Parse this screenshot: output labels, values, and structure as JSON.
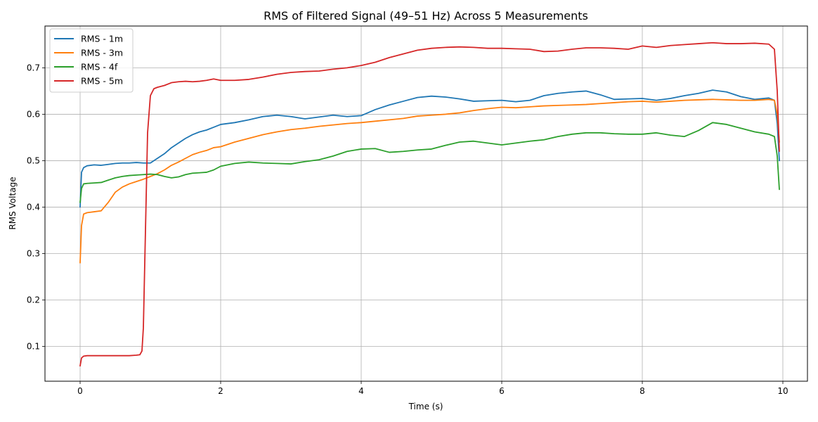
{
  "chart_data": {
    "type": "line",
    "title": "RMS of Filtered Signal (49–51 Hz) Across 5 Measurements",
    "xlabel": "Time (s)",
    "ylabel": "RMS Voltage",
    "xlim": [
      -0.5,
      10.35
    ],
    "ylim": [
      0.025,
      0.79
    ],
    "xticks": [
      0,
      2,
      4,
      6,
      8,
      10
    ],
    "yticks": [
      0.1,
      0.2,
      0.3,
      0.4,
      0.5,
      0.6,
      0.7
    ],
    "xtick_labels": [
      "0",
      "2",
      "4",
      "6",
      "8",
      "10"
    ],
    "ytick_labels": [
      "0.1",
      "0.2",
      "0.3",
      "0.4",
      "0.5",
      "0.6",
      "0.7"
    ],
    "grid": true,
    "legend_position": "top-left",
    "series": [
      {
        "name": "RMS - 1m",
        "color": "#1f77b4",
        "x": [
          0,
          0.02,
          0.05,
          0.1,
          0.2,
          0.3,
          0.4,
          0.5,
          0.6,
          0.7,
          0.8,
          0.9,
          1.0,
          1.1,
          1.2,
          1.3,
          1.4,
          1.5,
          1.6,
          1.7,
          1.8,
          1.9,
          2.0,
          2.2,
          2.4,
          2.6,
          2.8,
          3.0,
          3.2,
          3.4,
          3.6,
          3.8,
          4.0,
          4.2,
          4.4,
          4.6,
          4.8,
          5.0,
          5.2,
          5.4,
          5.6,
          5.8,
          6.0,
          6.2,
          6.4,
          6.6,
          6.8,
          7.0,
          7.2,
          7.4,
          7.6,
          7.8,
          8.0,
          8.2,
          8.4,
          8.6,
          8.8,
          9.0,
          9.2,
          9.4,
          9.6,
          9.8,
          9.88,
          9.92,
          9.95
        ],
        "values": [
          0.4,
          0.475,
          0.485,
          0.489,
          0.491,
          0.49,
          0.492,
          0.494,
          0.495,
          0.495,
          0.496,
          0.495,
          0.495,
          0.505,
          0.515,
          0.528,
          0.538,
          0.548,
          0.556,
          0.562,
          0.566,
          0.572,
          0.578,
          0.582,
          0.588,
          0.595,
          0.598,
          0.595,
          0.59,
          0.594,
          0.598,
          0.595,
          0.597,
          0.61,
          0.62,
          0.628,
          0.636,
          0.639,
          0.637,
          0.633,
          0.628,
          0.629,
          0.63,
          0.627,
          0.63,
          0.64,
          0.645,
          0.648,
          0.65,
          0.642,
          0.632,
          0.633,
          0.634,
          0.63,
          0.634,
          0.64,
          0.645,
          0.652,
          0.648,
          0.638,
          0.632,
          0.635,
          0.63,
          0.58,
          0.5
        ]
      },
      {
        "name": "RMS - 3m",
        "color": "#ff7f0e",
        "x": [
          0,
          0.02,
          0.05,
          0.1,
          0.2,
          0.3,
          0.4,
          0.5,
          0.6,
          0.7,
          0.8,
          0.9,
          1.0,
          1.1,
          1.2,
          1.3,
          1.4,
          1.5,
          1.6,
          1.7,
          1.8,
          1.9,
          2.0,
          2.2,
          2.4,
          2.6,
          2.8,
          3.0,
          3.2,
          3.4,
          3.6,
          3.8,
          4.0,
          4.2,
          4.4,
          4.6,
          4.8,
          5.0,
          5.2,
          5.4,
          5.6,
          5.8,
          6.0,
          6.2,
          6.4,
          6.6,
          6.8,
          7.0,
          7.2,
          7.4,
          7.6,
          7.8,
          8.0,
          8.2,
          8.4,
          8.6,
          8.8,
          9.0,
          9.2,
          9.4,
          9.6,
          9.8,
          9.88,
          9.92,
          9.95
        ],
        "values": [
          0.28,
          0.36,
          0.385,
          0.388,
          0.39,
          0.392,
          0.41,
          0.432,
          0.443,
          0.45,
          0.455,
          0.46,
          0.466,
          0.472,
          0.48,
          0.49,
          0.497,
          0.505,
          0.513,
          0.518,
          0.522,
          0.528,
          0.53,
          0.54,
          0.548,
          0.556,
          0.562,
          0.567,
          0.57,
          0.574,
          0.577,
          0.58,
          0.582,
          0.585,
          0.588,
          0.591,
          0.596,
          0.598,
          0.6,
          0.603,
          0.608,
          0.612,
          0.615,
          0.614,
          0.616,
          0.618,
          0.619,
          0.62,
          0.621,
          0.623,
          0.625,
          0.627,
          0.628,
          0.626,
          0.628,
          0.63,
          0.631,
          0.632,
          0.631,
          0.63,
          0.63,
          0.632,
          0.63,
          0.6,
          0.54
        ]
      },
      {
        "name": "RMS - 4f",
        "color": "#2ca02c",
        "x": [
          0,
          0.02,
          0.05,
          0.1,
          0.2,
          0.3,
          0.4,
          0.5,
          0.6,
          0.7,
          0.8,
          0.9,
          1.0,
          1.1,
          1.2,
          1.3,
          1.4,
          1.5,
          1.6,
          1.7,
          1.8,
          1.9,
          2.0,
          2.2,
          2.4,
          2.6,
          2.8,
          3.0,
          3.2,
          3.4,
          3.6,
          3.8,
          4.0,
          4.2,
          4.4,
          4.6,
          4.8,
          5.0,
          5.2,
          5.4,
          5.6,
          5.8,
          6.0,
          6.2,
          6.4,
          6.6,
          6.8,
          7.0,
          7.2,
          7.4,
          7.6,
          7.8,
          8.0,
          8.2,
          8.4,
          8.6,
          8.8,
          9.0,
          9.2,
          9.4,
          9.6,
          9.8,
          9.88,
          9.92,
          9.95
        ],
        "values": [
          0.41,
          0.44,
          0.45,
          0.451,
          0.452,
          0.453,
          0.458,
          0.463,
          0.466,
          0.468,
          0.469,
          0.47,
          0.471,
          0.47,
          0.466,
          0.463,
          0.465,
          0.47,
          0.473,
          0.474,
          0.475,
          0.48,
          0.488,
          0.494,
          0.497,
          0.495,
          0.494,
          0.493,
          0.498,
          0.502,
          0.51,
          0.52,
          0.525,
          0.526,
          0.518,
          0.52,
          0.523,
          0.525,
          0.533,
          0.54,
          0.542,
          0.538,
          0.534,
          0.538,
          0.542,
          0.545,
          0.552,
          0.557,
          0.56,
          0.56,
          0.558,
          0.557,
          0.557,
          0.56,
          0.555,
          0.552,
          0.565,
          0.582,
          0.578,
          0.57,
          0.562,
          0.557,
          0.552,
          0.51,
          0.438
        ]
      },
      {
        "name": "RMS - 5m",
        "color": "#d62728",
        "x": [
          0,
          0.02,
          0.05,
          0.1,
          0.2,
          0.3,
          0.4,
          0.5,
          0.6,
          0.7,
          0.8,
          0.85,
          0.88,
          0.9,
          0.93,
          0.96,
          1.0,
          1.05,
          1.1,
          1.2,
          1.3,
          1.4,
          1.5,
          1.6,
          1.7,
          1.8,
          1.9,
          2.0,
          2.2,
          2.4,
          2.6,
          2.8,
          3.0,
          3.2,
          3.4,
          3.6,
          3.8,
          4.0,
          4.2,
          4.4,
          4.6,
          4.8,
          5.0,
          5.2,
          5.4,
          5.6,
          5.8,
          6.0,
          6.2,
          6.4,
          6.6,
          6.8,
          7.0,
          7.2,
          7.4,
          7.6,
          7.8,
          8.0,
          8.2,
          8.4,
          8.6,
          8.8,
          9.0,
          9.2,
          9.4,
          9.6,
          9.8,
          9.88,
          9.92,
          9.95
        ],
        "values": [
          0.058,
          0.075,
          0.079,
          0.08,
          0.08,
          0.08,
          0.08,
          0.08,
          0.08,
          0.08,
          0.081,
          0.082,
          0.09,
          0.14,
          0.35,
          0.56,
          0.64,
          0.655,
          0.658,
          0.662,
          0.668,
          0.67,
          0.671,
          0.67,
          0.671,
          0.673,
          0.676,
          0.673,
          0.673,
          0.675,
          0.68,
          0.686,
          0.69,
          0.692,
          0.693,
          0.697,
          0.7,
          0.705,
          0.712,
          0.722,
          0.73,
          0.738,
          0.742,
          0.744,
          0.745,
          0.744,
          0.742,
          0.742,
          0.741,
          0.74,
          0.735,
          0.736,
          0.74,
          0.743,
          0.743,
          0.742,
          0.74,
          0.747,
          0.744,
          0.748,
          0.75,
          0.752,
          0.754,
          0.752,
          0.752,
          0.753,
          0.751,
          0.74,
          0.65,
          0.52
        ]
      }
    ]
  }
}
